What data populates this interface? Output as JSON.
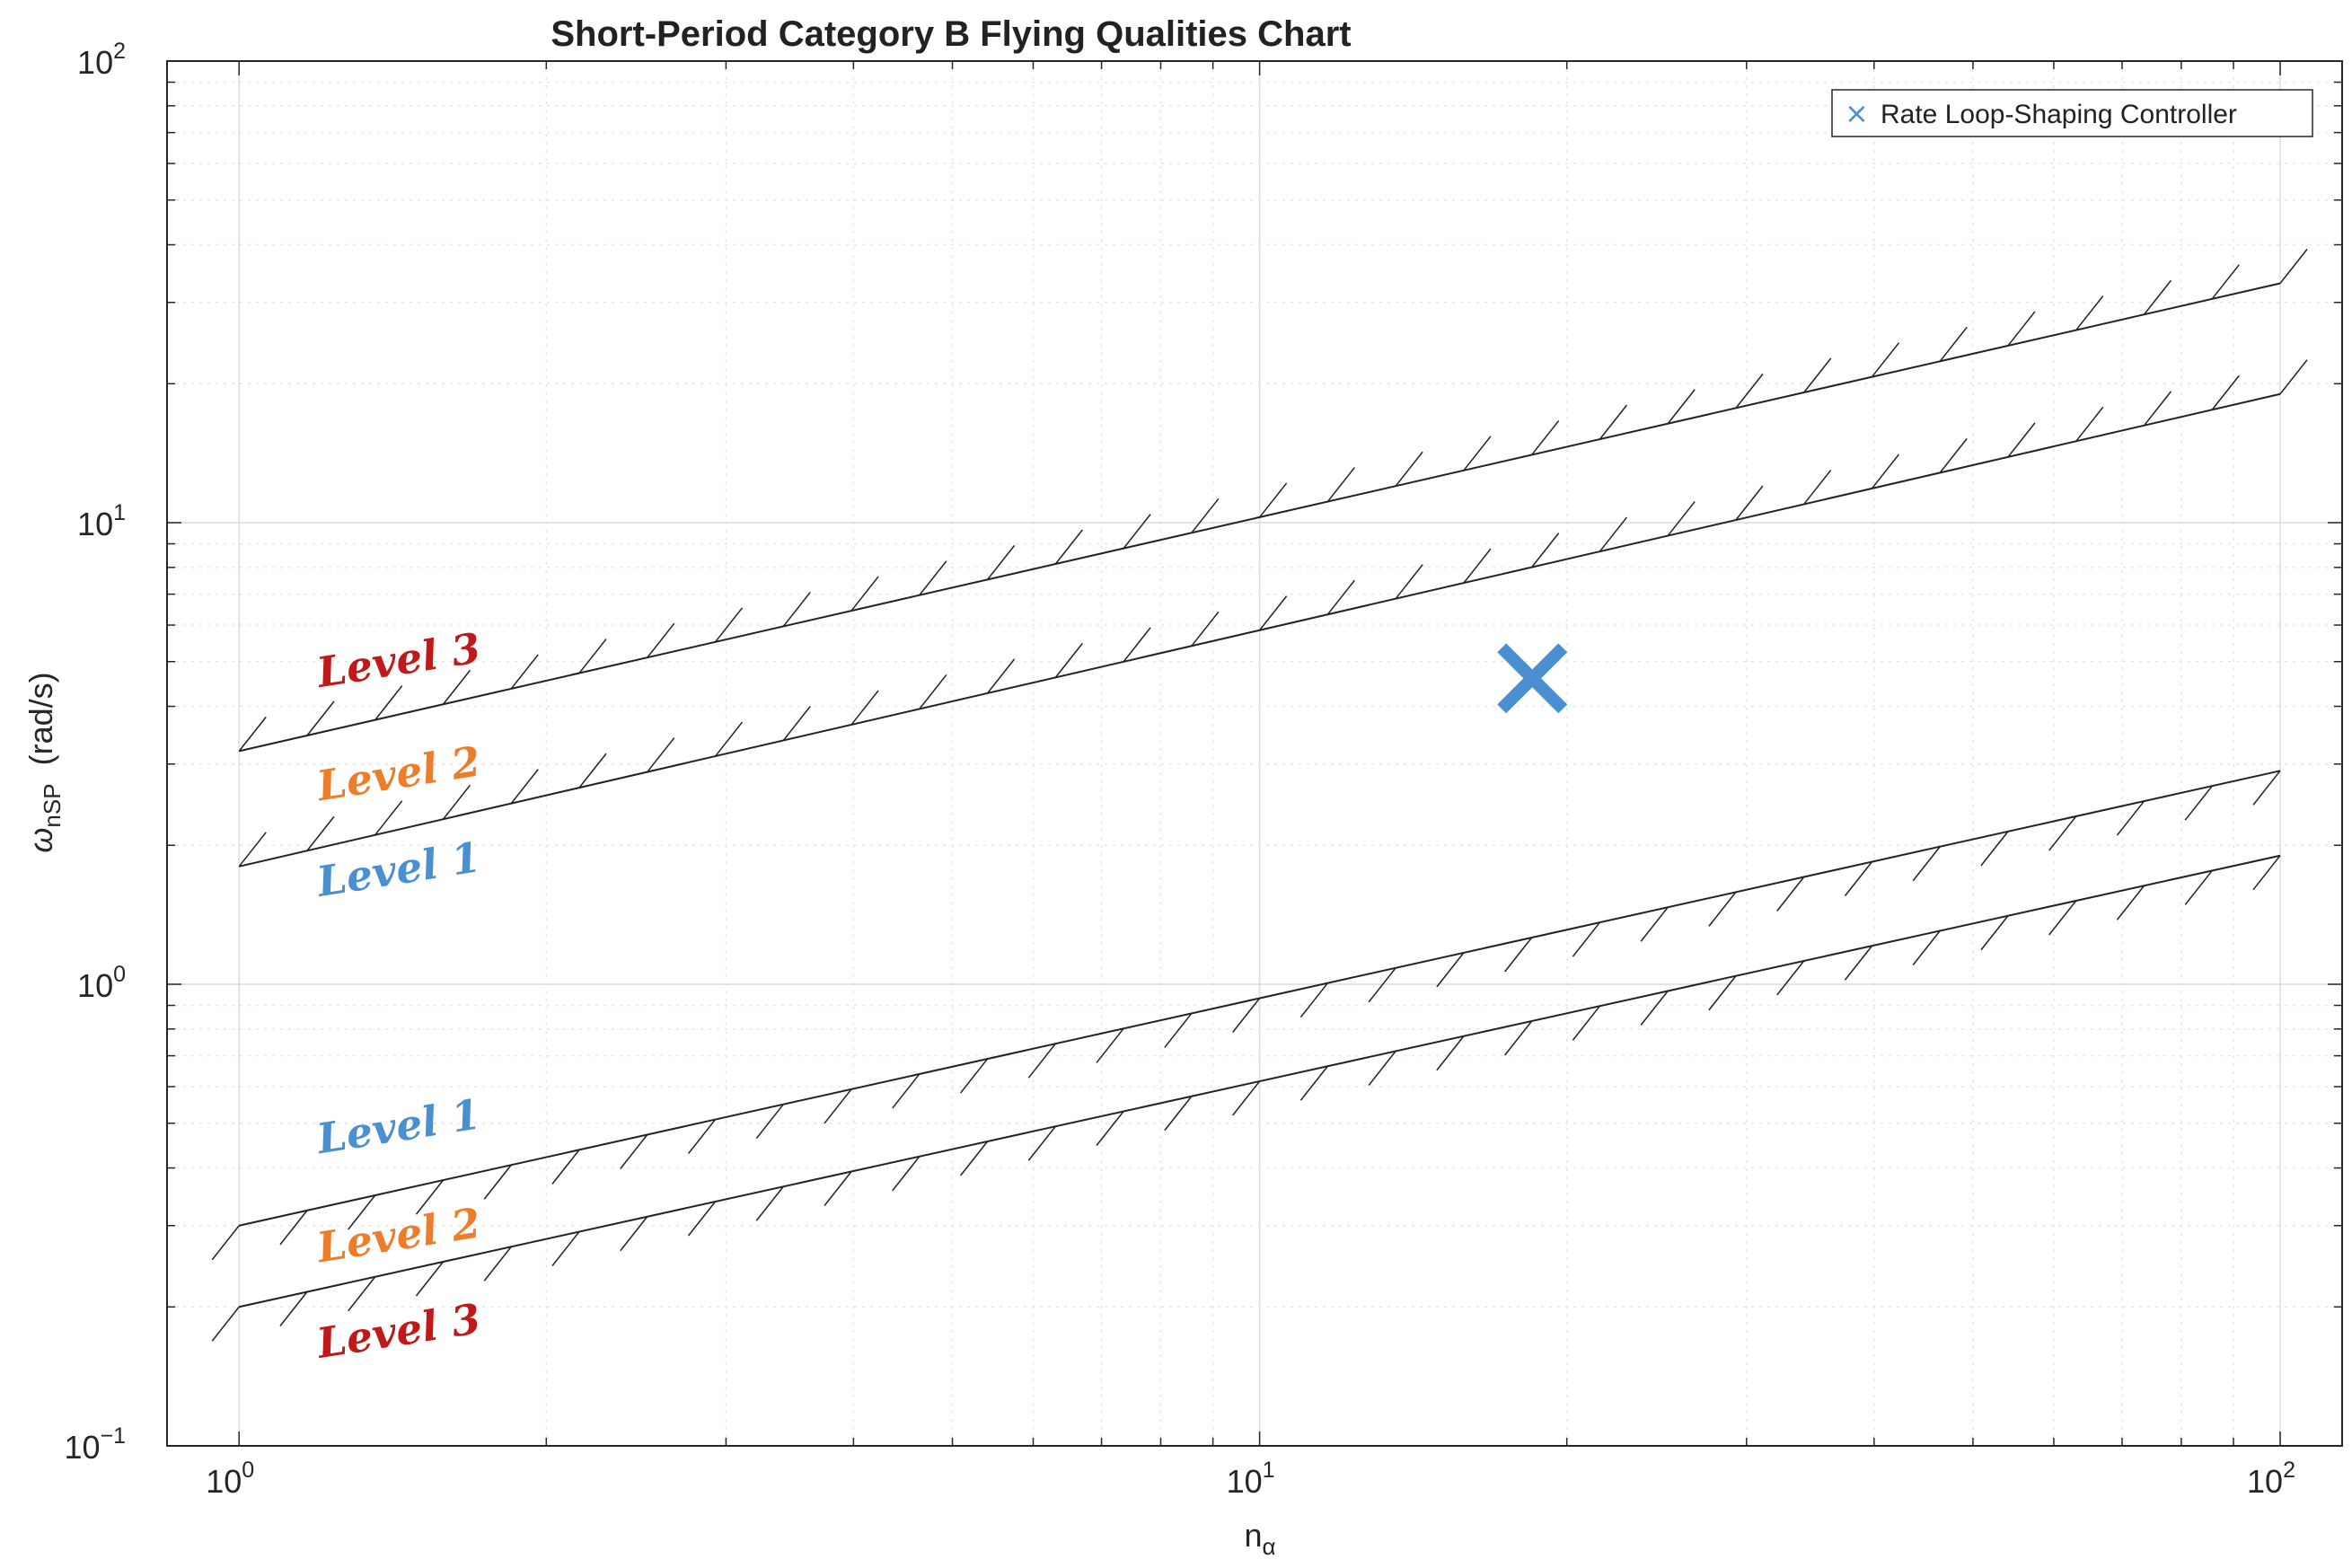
{
  "chart_data": {
    "type": "line",
    "title": "Short-Period Category B Flying Qualities Chart",
    "xlabel": {
      "main": "n",
      "sub": "α"
    },
    "ylabel": {
      "main": "ω",
      "sub": "nSP",
      "unit": "(rad/s)"
    },
    "xscale": "log",
    "yscale": "log",
    "xlim": [
      0.85,
      115
    ],
    "ylim": [
      0.1,
      100
    ],
    "grid": true,
    "minor_grid": true,
    "x_ticks": [
      {
        "value": 1,
        "base": "10",
        "exp": "0"
      },
      {
        "value": 10,
        "base": "10",
        "exp": "1"
      },
      {
        "value": 100,
        "base": "10",
        "exp": "2"
      }
    ],
    "y_ticks": [
      {
        "value": 0.1,
        "base": "10",
        "exp": "−1"
      },
      {
        "value": 1,
        "base": "10",
        "exp": "0"
      },
      {
        "value": 10,
        "base": "10",
        "exp": "1"
      },
      {
        "value": 100,
        "base": "10",
        "exp": "2"
      }
    ],
    "boundaries": [
      {
        "x": [
          1,
          100
        ],
        "y": [
          3.2,
          33
        ],
        "hatch": "above"
      },
      {
        "x": [
          1,
          100
        ],
        "y": [
          1.8,
          19
        ],
        "hatch": "above"
      },
      {
        "x": [
          1,
          100
        ],
        "y": [
          0.3,
          2.9
        ],
        "hatch": "below"
      },
      {
        "x": [
          1,
          100
        ],
        "y": [
          0.2,
          1.9
        ],
        "hatch": "below"
      }
    ],
    "series": [
      {
        "name": "Rate Loop-Shaping Controller",
        "marker": "x",
        "color": "#4a90d0",
        "x": [
          18.5
        ],
        "y": [
          4.6
        ]
      }
    ],
    "legend": {
      "placement": "top-right",
      "marker": "×"
    },
    "annotations": [
      {
        "text": "Level 3",
        "x": 1.2,
        "y": 4.4,
        "color": "#c0191a"
      },
      {
        "text": "Level 2",
        "x": 1.2,
        "y": 2.5,
        "color": "#ee7d2a"
      },
      {
        "text": "Level 1",
        "x": 1.2,
        "y": 1.55,
        "color": "#4a90d0"
      },
      {
        "text": "Level 1",
        "x": 1.2,
        "y": 0.43,
        "color": "#4a90d0"
      },
      {
        "text": "Level 2",
        "x": 1.2,
        "y": 0.25,
        "color": "#ee7d2a"
      },
      {
        "text": "Level 3",
        "x": 1.2,
        "y": 0.155,
        "color": "#c0191a"
      }
    ]
  }
}
